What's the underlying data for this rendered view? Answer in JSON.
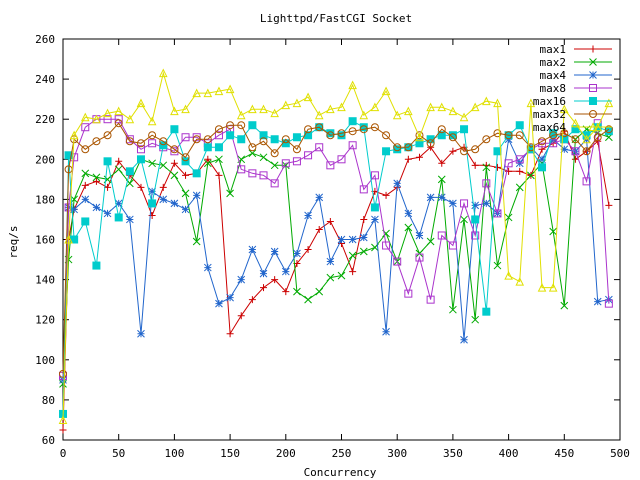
{
  "chart_data": {
    "type": "line",
    "title": "Lighttpd/FastCGI Socket",
    "xlabel": "Concurrency",
    "ylabel": "req/s",
    "xlim": [
      0,
      500
    ],
    "ylim": [
      60,
      260
    ],
    "xticks": [
      0,
      50,
      100,
      150,
      200,
      250,
      300,
      350,
      400,
      450,
      500
    ],
    "yticks": [
      60,
      80,
      100,
      120,
      140,
      160,
      180,
      200,
      220,
      240,
      260
    ],
    "grid": false,
    "legend_position": "top-right",
    "x": [
      0,
      5,
      10,
      20,
      30,
      40,
      50,
      60,
      70,
      80,
      90,
      100,
      110,
      120,
      130,
      140,
      150,
      160,
      170,
      180,
      190,
      200,
      210,
      220,
      230,
      240,
      250,
      260,
      270,
      280,
      290,
      300,
      310,
      320,
      330,
      340,
      350,
      360,
      370,
      380,
      390,
      400,
      410,
      420,
      430,
      440,
      450,
      460,
      470,
      480,
      490
    ],
    "series": [
      {
        "name": "max1",
        "color": "#cc0000",
        "marker": "plus",
        "values": [
          65,
          160,
          175,
          187,
          189,
          186,
          199,
          192,
          186,
          172,
          186,
          198,
          192,
          193,
          200,
          192,
          113,
          122,
          130,
          136,
          140,
          134,
          148,
          155,
          165,
          169,
          158,
          144,
          170,
          184,
          182,
          186,
          200,
          201,
          206,
          198,
          204,
          206,
          197,
          197,
          196,
          194,
          194,
          192,
          205,
          208,
          214,
          200,
          204,
          209,
          177
        ]
      },
      {
        "name": "max2",
        "color": "#00aa00",
        "marker": "x",
        "values": [
          88,
          150,
          180,
          193,
          191,
          190,
          195,
          188,
          200,
          198,
          197,
          192,
          183,
          159,
          198,
          200,
          183,
          200,
          203,
          201,
          197,
          197,
          134,
          130,
          134,
          141,
          142,
          152,
          154,
          156,
          163,
          149,
          166,
          153,
          159,
          190,
          125,
          170,
          120,
          196,
          147,
          171,
          186,
          192,
          198,
          164,
          127,
          210,
          215,
          213,
          211
        ]
      },
      {
        "name": "max4",
        "color": "#2266cc",
        "marker": "star",
        "values": [
          90,
          176,
          175,
          180,
          176,
          173,
          178,
          170,
          113,
          184,
          180,
          178,
          175,
          182,
          146,
          128,
          131,
          140,
          155,
          143,
          154,
          144,
          153,
          172,
          181,
          149,
          160,
          160,
          161,
          170,
          114,
          188,
          173,
          162,
          181,
          181,
          178,
          110,
          177,
          178,
          173,
          210,
          198,
          206,
          200,
          210,
          205,
          204,
          210,
          129,
          130
        ]
      },
      {
        "name": "max8",
        "color": "#aa33cc",
        "marker": "square",
        "values": [
          92,
          176,
          201,
          216,
          220,
          220,
          220,
          210,
          205,
          208,
          206,
          204,
          211,
          211,
          208,
          212,
          215,
          195,
          193,
          192,
          188,
          198,
          199,
          202,
          206,
          197,
          200,
          207,
          185,
          192,
          157,
          149,
          133,
          151,
          130,
          162,
          157,
          178,
          162,
          188,
          173,
          198,
          200,
          205,
          208,
          208,
          210,
          204,
          189,
          218,
          128
        ]
      },
      {
        "name": "max16",
        "color": "#00cccc",
        "marker": "filled-square",
        "values": [
          73,
          202,
          160,
          169,
          147,
          199,
          171,
          194,
          200,
          178,
          207,
          215,
          199,
          193,
          206,
          206,
          212,
          210,
          217,
          212,
          210,
          208,
          211,
          212,
          216,
          213,
          212,
          219,
          216,
          176,
          204,
          205,
          206,
          208,
          210,
          212,
          212,
          215,
          170,
          124,
          204,
          212,
          217,
          205,
          196,
          213,
          210,
          215,
          212,
          216,
          214
        ]
      },
      {
        "name": "max32",
        "color": "#aa5500",
        "marker": "circle",
        "values": [
          93,
          195,
          210,
          205,
          209,
          212,
          218,
          209,
          208,
          212,
          209,
          205,
          201,
          210,
          210,
          215,
          217,
          217,
          206,
          209,
          203,
          210,
          205,
          215,
          216,
          212,
          213,
          214,
          215,
          216,
          212,
          206,
          206,
          212,
          208,
          215,
          211,
          204,
          205,
          210,
          213,
          212,
          212,
          206,
          209,
          212,
          213,
          210,
          204,
          211,
          215
        ]
      },
      {
        "name": "max64",
        "color": "#e0e000",
        "marker": "triangle",
        "values": [
          70,
          160,
          212,
          221,
          220,
          223,
          224,
          220,
          228,
          219,
          243,
          224,
          225,
          233,
          233,
          234,
          235,
          222,
          225,
          225,
          223,
          227,
          228,
          231,
          222,
          225,
          226,
          237,
          222,
          226,
          234,
          222,
          224,
          211,
          226,
          226,
          224,
          221,
          226,
          229,
          228,
          142,
          139,
          228,
          136,
          136,
          225,
          218,
          210,
          216,
          228
        ]
      }
    ]
  }
}
